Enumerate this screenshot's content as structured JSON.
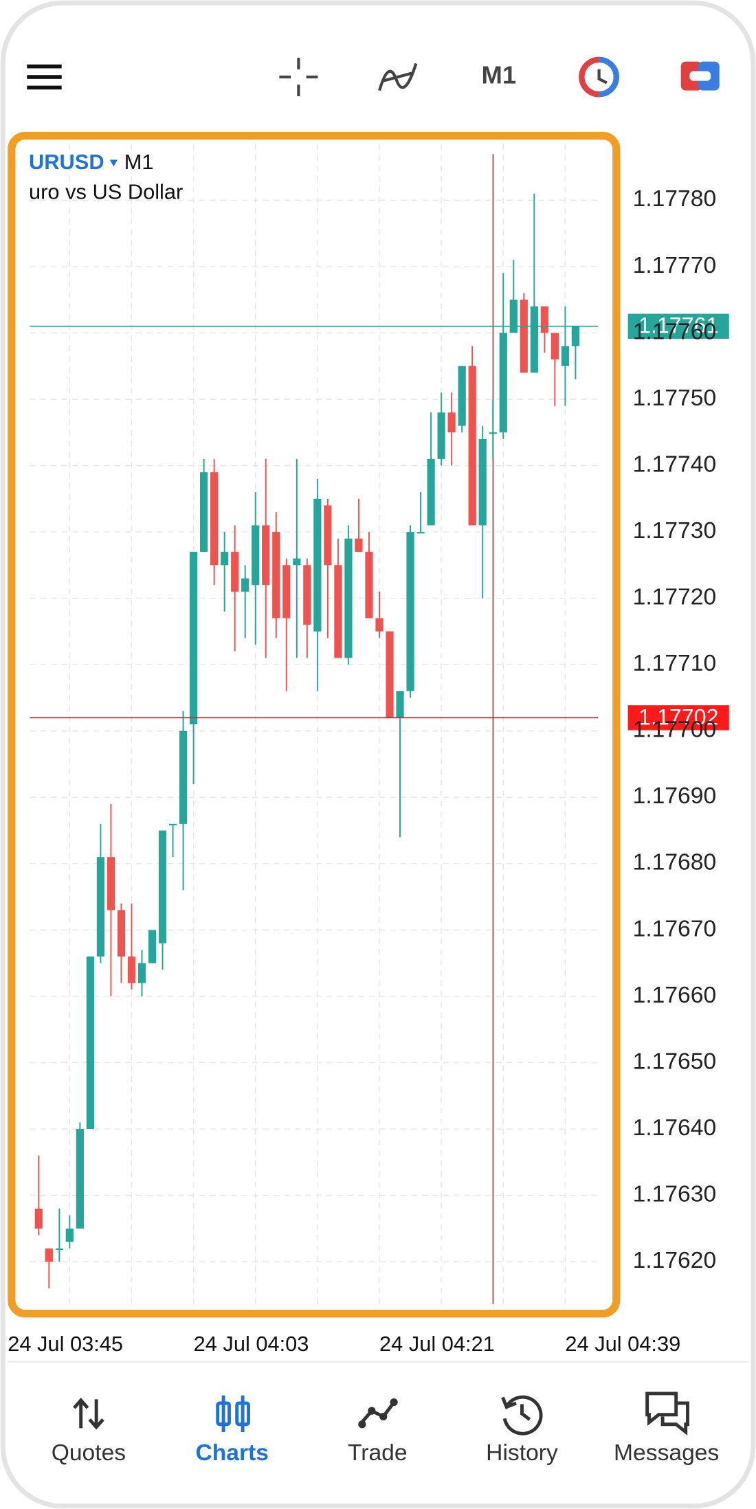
{
  "toolbar": {
    "timeframe": "M1"
  },
  "chart_data": {
    "type": "candlestick",
    "symbol": "URUSD",
    "timeframe": "M1",
    "subtitle": "uro vs US Dollar",
    "categories": [
      "24 Jul 03:45",
      null,
      null,
      null,
      null,
      null,
      null,
      null,
      null,
      null,
      null,
      null,
      null,
      null,
      null,
      null,
      null,
      null,
      "24 Jul 04:03",
      null,
      null,
      null,
      null,
      null,
      null,
      null,
      null,
      null,
      null,
      null,
      null,
      null,
      null,
      null,
      null,
      null,
      "24 Jul 04:21",
      null,
      null,
      null,
      null,
      null,
      null,
      null,
      null,
      null,
      null,
      null,
      null,
      null,
      null,
      null,
      null,
      null,
      "24 Jul 04:39",
      null
    ],
    "open": [
      null,
      null,
      null,
      1.17628,
      1.17622,
      1.17622,
      1.17623,
      1.17625,
      1.1764,
      1.17666,
      1.17681,
      1.17673,
      1.17666,
      1.17662,
      1.17665,
      1.17668,
      1.17686,
      1.17686,
      1.17701,
      1.17727,
      1.17739,
      1.17725,
      1.17727,
      1.17721,
      1.17722,
      1.17731,
      1.1773,
      1.17725,
      1.17725,
      1.17725,
      1.17715,
      1.17734,
      1.17725,
      1.17711,
      1.17729,
      1.17727,
      1.17717,
      1.17715,
      1.17702,
      1.17706,
      1.1773,
      1.17731,
      1.17741,
      1.17748,
      1.17746,
      1.17755,
      1.17731,
      1.17745,
      1.17745,
      1.1776,
      1.17765,
      1.17754,
      1.17764,
      1.1776,
      1.17755,
      1.17758
    ],
    "high": [
      null,
      null,
      null,
      1.17636,
      1.17622,
      1.17628,
      1.17627,
      1.17641,
      1.17666,
      1.17686,
      1.17689,
      1.17674,
      1.17674,
      1.17667,
      1.1767,
      1.17685,
      1.17686,
      1.17703,
      1.17727,
      1.17741,
      1.17741,
      1.1773,
      1.17731,
      1.17725,
      1.17736,
      1.17741,
      1.17733,
      1.17726,
      1.17741,
      1.17726,
      1.17738,
      1.17735,
      1.17729,
      1.17731,
      1.17735,
      1.1773,
      1.17721,
      1.17715,
      1.17706,
      1.17731,
      1.17736,
      1.17748,
      1.17751,
      1.17751,
      1.17755,
      1.17758,
      1.17746,
      1.1775,
      1.17769,
      1.17771,
      1.17766,
      1.17781,
      1.17764,
      1.1776,
      1.17764,
      1.17761
    ],
    "low": [
      null,
      null,
      null,
      1.17624,
      1.17616,
      1.1762,
      1.17622,
      1.17625,
      1.1764,
      1.17665,
      1.1766,
      1.17662,
      1.17661,
      1.1766,
      1.17665,
      1.17664,
      1.17681,
      1.17676,
      1.17692,
      1.17727,
      1.17722,
      1.17718,
      1.17712,
      1.17714,
      1.17713,
      1.17711,
      1.17714,
      1.17706,
      1.17711,
      1.17711,
      1.17706,
      1.17714,
      1.17711,
      1.1771,
      1.17727,
      1.17717,
      1.17714,
      1.17702,
      1.17684,
      1.17705,
      1.1773,
      1.17731,
      1.1774,
      1.1774,
      1.17745,
      1.17731,
      1.1772,
      1.17741,
      1.17744,
      1.1776,
      1.17754,
      1.17754,
      1.17757,
      1.17749,
      1.17749,
      1.17753
    ],
    "close": [
      null,
      null,
      null,
      1.17625,
      1.1762,
      1.17622,
      1.17625,
      1.1764,
      1.17666,
      1.17681,
      1.17673,
      1.17666,
      1.17662,
      1.17665,
      1.1767,
      1.17685,
      1.17686,
      1.177,
      1.17727,
      1.17739,
      1.17725,
      1.17727,
      1.17721,
      1.17723,
      1.17731,
      1.17722,
      1.17717,
      1.17717,
      1.17726,
      1.17716,
      1.17735,
      1.17725,
      1.17711,
      1.17729,
      1.17727,
      1.17717,
      1.17715,
      1.17702,
      1.17706,
      1.1773,
      1.1773,
      1.17741,
      1.17748,
      1.17745,
      1.17755,
      1.17731,
      1.17744,
      1.17745,
      1.1776,
      1.17765,
      1.17754,
      1.17764,
      1.1776,
      1.17756,
      1.17758,
      1.17761
    ],
    "up_color": "#26a69a",
    "down_color": "#ef5350",
    "ylim": [
      1.17614,
      1.1779
    ],
    "yticks": [
      {
        "value": 1.1762,
        "label": "1.17620"
      },
      {
        "value": 1.1763,
        "label": "1.17630"
      },
      {
        "value": 1.1764,
        "label": "1.17640"
      },
      {
        "value": 1.1765,
        "label": "1.17650"
      },
      {
        "value": 1.1766,
        "label": "1.17660"
      },
      {
        "value": 1.1767,
        "label": "1.17670"
      },
      {
        "value": 1.1768,
        "label": "1.17680"
      },
      {
        "value": 1.1769,
        "label": "1.17690"
      },
      {
        "value": 1.177,
        "label": "1.17700"
      },
      {
        "value": 1.1771,
        "label": "1.17710"
      },
      {
        "value": 1.1772,
        "label": "1.17720"
      },
      {
        "value": 1.1773,
        "label": "1.17730"
      },
      {
        "value": 1.1774,
        "label": "1.17740"
      },
      {
        "value": 1.1775,
        "label": "1.17750"
      },
      {
        "value": 1.1776,
        "label": "1.17760"
      },
      {
        "value": 1.1777,
        "label": "1.17770"
      },
      {
        "value": 1.1778,
        "label": "1.17780"
      }
    ],
    "grid": true,
    "price_lines": [
      {
        "value": 1.17761,
        "color": "#26a69a"
      },
      {
        "value": 1.17702,
        "color": "#ff1a1a"
      }
    ]
  },
  "nav": {
    "items": [
      "Quotes",
      "Charts",
      "Trade",
      "History",
      "Messages"
    ],
    "active": 1
  }
}
